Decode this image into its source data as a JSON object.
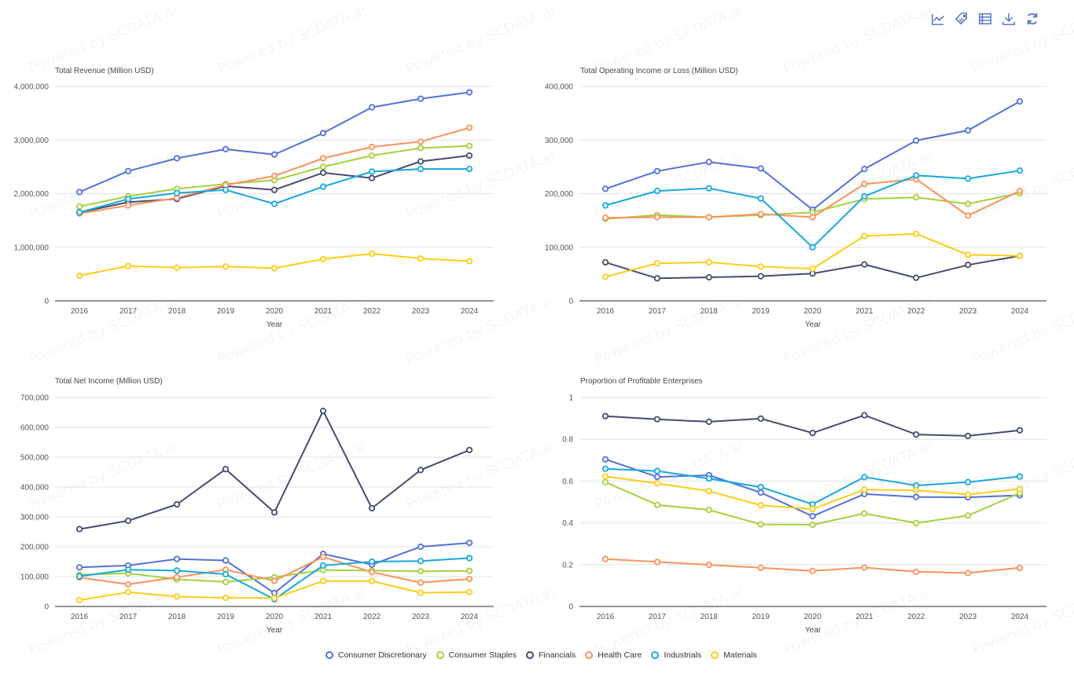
{
  "toolbar": {
    "icons": [
      "line-chart-icon",
      "tag-icon",
      "table-icon",
      "download-icon",
      "refresh-icon"
    ]
  },
  "watermark_text": "Powered by SCDATA.ai",
  "series_meta": [
    {
      "name": "Consumer Discretionary",
      "color": "#5470d6"
    },
    {
      "name": "Consumer Staples",
      "color": "#a5d03c"
    },
    {
      "name": "Financials",
      "color": "#464c6f"
    },
    {
      "name": "Health Care",
      "color": "#f9925a"
    },
    {
      "name": "Industrials",
      "color": "#16a8dd"
    },
    {
      "name": "Materials",
      "color": "#fbcd14"
    }
  ],
  "legend": {
    "items": [
      "Consumer Discretionary",
      "Consumer Staples",
      "Financials",
      "Health Care",
      "Industrials",
      "Materials"
    ]
  },
  "chart_data": [
    {
      "type": "line",
      "title": "Total Revenue (Million USD)",
      "xlabel": "Year",
      "ylabel": "",
      "categories": [
        "2016",
        "2017",
        "2018",
        "2019",
        "2020",
        "2021",
        "2022",
        "2023",
        "2024"
      ],
      "ylim": [
        0,
        4000000
      ],
      "yticks": [
        0,
        1000000,
        2000000,
        3000000,
        4000000
      ],
      "ytick_labels": [
        "0",
        "1,000,000",
        "2,000,000",
        "3,000,000",
        "4,000,000"
      ],
      "grid": true,
      "series": [
        {
          "name": "Consumer Discretionary",
          "values": [
            2030000,
            2420000,
            2660000,
            2830000,
            2730000,
            3130000,
            3610000,
            3770000,
            3890000
          ]
        },
        {
          "name": "Consumer Staples",
          "values": [
            1760000,
            1950000,
            2090000,
            2180000,
            2250000,
            2500000,
            2710000,
            2850000,
            2890000
          ]
        },
        {
          "name": "Financials",
          "values": [
            1650000,
            1840000,
            1900000,
            2140000,
            2070000,
            2390000,
            2290000,
            2600000,
            2710000
          ]
        },
        {
          "name": "Health Care",
          "values": [
            1630000,
            1780000,
            1920000,
            2160000,
            2330000,
            2660000,
            2870000,
            2970000,
            3230000
          ]
        },
        {
          "name": "Industrials",
          "values": [
            1650000,
            1900000,
            2010000,
            2070000,
            1810000,
            2130000,
            2410000,
            2460000,
            2460000
          ]
        },
        {
          "name": "Materials",
          "values": [
            470000,
            650000,
            620000,
            640000,
            610000,
            780000,
            880000,
            790000,
            740000
          ]
        }
      ]
    },
    {
      "type": "line",
      "title": "Total Operating Income or Loss (Million USD)",
      "xlabel": "Year",
      "ylabel": "",
      "categories": [
        "2016",
        "2017",
        "2018",
        "2019",
        "2020",
        "2021",
        "2022",
        "2023",
        "2024"
      ],
      "ylim": [
        0,
        400000
      ],
      "yticks": [
        0,
        100000,
        200000,
        300000,
        400000
      ],
      "ytick_labels": [
        "0",
        "100,000",
        "200,000",
        "300,000",
        "400,000"
      ],
      "grid": true,
      "series": [
        {
          "name": "Consumer Discretionary",
          "values": [
            209000,
            242000,
            259000,
            247000,
            170000,
            246000,
            299000,
            318000,
            372000
          ]
        },
        {
          "name": "Consumer Staples",
          "values": [
            153000,
            160000,
            156000,
            160000,
            165000,
            190000,
            193000,
            181000,
            201000
          ]
        },
        {
          "name": "Financials",
          "values": [
            72000,
            42000,
            44000,
            46000,
            51000,
            68000,
            43000,
            67000,
            84000
          ]
        },
        {
          "name": "Health Care",
          "values": [
            155000,
            156000,
            156000,
            162000,
            156000,
            218000,
            227000,
            159000,
            205000
          ]
        },
        {
          "name": "Industrials",
          "values": [
            178000,
            205000,
            210000,
            191000,
            100000,
            195000,
            234000,
            228000,
            243000
          ]
        },
        {
          "name": "Materials",
          "values": [
            45000,
            70000,
            72000,
            64000,
            60000,
            121000,
            125000,
            86000,
            84000
          ]
        }
      ]
    },
    {
      "type": "line",
      "title": "Total Net Income (Million USD)",
      "xlabel": "Year",
      "ylabel": "",
      "categories": [
        "2016",
        "2017",
        "2018",
        "2019",
        "2020",
        "2021",
        "2022",
        "2023",
        "2024"
      ],
      "ylim": [
        0,
        700000
      ],
      "yticks": [
        0,
        100000,
        200000,
        300000,
        400000,
        500000,
        600000,
        700000
      ],
      "ytick_labels": [
        "0",
        "100,000",
        "200,000",
        "300,000",
        "400,000",
        "500,000",
        "600,000",
        "700,000"
      ],
      "grid": true,
      "series": [
        {
          "name": "Consumer Discretionary",
          "values": [
            131000,
            137000,
            159000,
            154000,
            45000,
            176000,
            140000,
            200000,
            213000
          ]
        },
        {
          "name": "Consumer Staples",
          "values": [
            106000,
            111000,
            91000,
            82000,
            98000,
            122000,
            120000,
            118000,
            119000
          ]
        },
        {
          "name": "Financials",
          "values": [
            259000,
            287000,
            342000,
            460000,
            315000,
            655000,
            329000,
            457000,
            524000
          ]
        },
        {
          "name": "Health Care",
          "values": [
            97000,
            74000,
            98000,
            123000,
            86000,
            166000,
            115000,
            80000,
            92000
          ]
        },
        {
          "name": "Industrials",
          "values": [
            101000,
            123000,
            120000,
            108000,
            24000,
            137000,
            150000,
            152000,
            162000
          ]
        },
        {
          "name": "Materials",
          "values": [
            21000,
            48000,
            33000,
            29000,
            28000,
            85000,
            85000,
            46000,
            48000
          ]
        }
      ]
    },
    {
      "type": "line",
      "title": "Proportion of Profitable Enterprises",
      "xlabel": "Year",
      "ylabel": "",
      "categories": [
        "2016",
        "2017",
        "2018",
        "2019",
        "2020",
        "2021",
        "2022",
        "2023",
        "2024"
      ],
      "ylim": [
        0,
        1
      ],
      "yticks": [
        0,
        0.2,
        0.4,
        0.6,
        0.8,
        1
      ],
      "ytick_labels": [
        "0",
        "0.2",
        "0.4",
        "0.6",
        "0.8",
        "1"
      ],
      "grid": true,
      "series": [
        {
          "name": "Consumer Discretionary",
          "values": [
            0.704,
            0.62,
            0.628,
            0.545,
            0.432,
            0.538,
            0.524,
            0.522,
            0.532
          ]
        },
        {
          "name": "Consumer Staples",
          "values": [
            0.595,
            0.486,
            0.462,
            0.393,
            0.391,
            0.445,
            0.399,
            0.435,
            0.542
          ]
        },
        {
          "name": "Financials",
          "values": [
            0.911,
            0.896,
            0.884,
            0.899,
            0.83,
            0.915,
            0.823,
            0.816,
            0.843
          ]
        },
        {
          "name": "Health Care",
          "values": [
            0.227,
            0.213,
            0.199,
            0.185,
            0.17,
            0.186,
            0.166,
            0.16,
            0.185
          ]
        },
        {
          "name": "Industrials",
          "values": [
            0.659,
            0.648,
            0.612,
            0.571,
            0.489,
            0.619,
            0.579,
            0.595,
            0.622
          ]
        },
        {
          "name": "Materials",
          "values": [
            0.622,
            0.589,
            0.552,
            0.484,
            0.466,
            0.559,
            0.556,
            0.536,
            0.562
          ]
        }
      ],
      "legend_position": "bottom-center"
    }
  ]
}
